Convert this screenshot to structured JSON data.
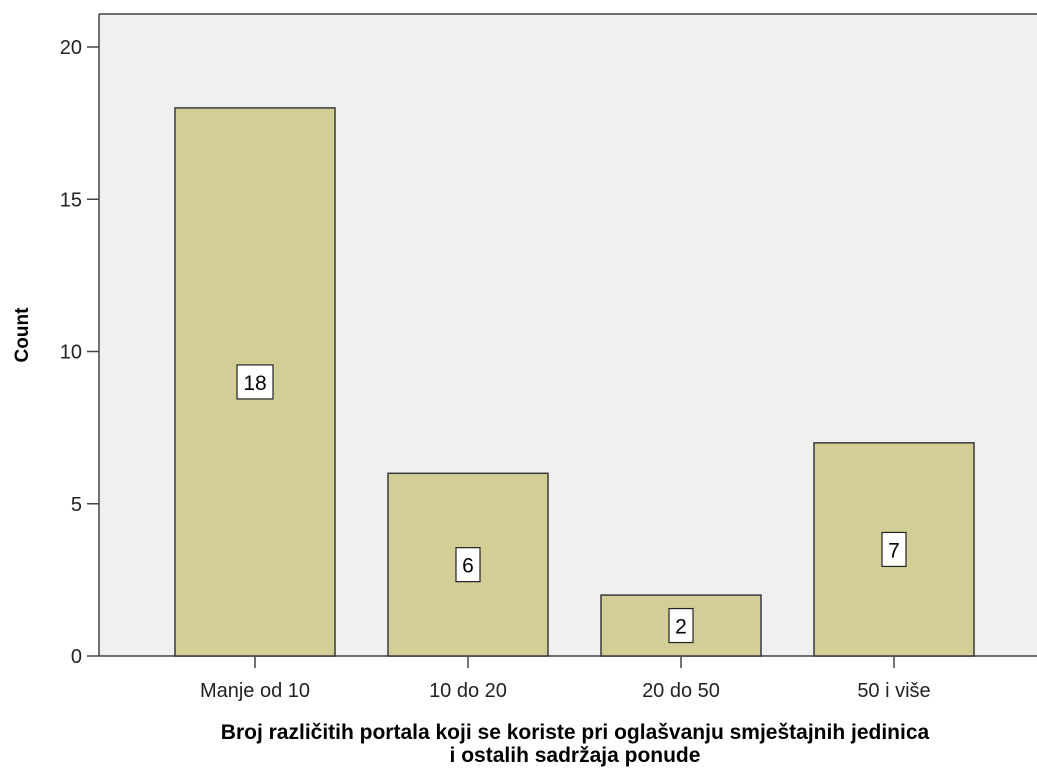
{
  "chart_data": {
    "type": "bar",
    "categories": [
      "Manje od 10",
      "10 do 20",
      "20  do 50",
      "50 i više"
    ],
    "values": [
      18,
      6,
      2,
      7
    ],
    "data_labels": [
      "18",
      "6",
      "2",
      "7"
    ],
    "title": "",
    "xlabel_lines": [
      "Broj različitih portala koji se koriste pri oglašvanju smještajnih jedinica",
      "i ostalih sadržaja ponude"
    ],
    "ylabel": "Count",
    "ylim": [
      0,
      20
    ],
    "yticks": [
      "0",
      "5",
      "10",
      "15",
      "20"
    ],
    "grid": false,
    "colors": {
      "bar_fill": "#d3ce96",
      "bar_stroke": "#3a3a3a",
      "plot_background": "#f0f0f0",
      "axis": "#444444"
    }
  }
}
